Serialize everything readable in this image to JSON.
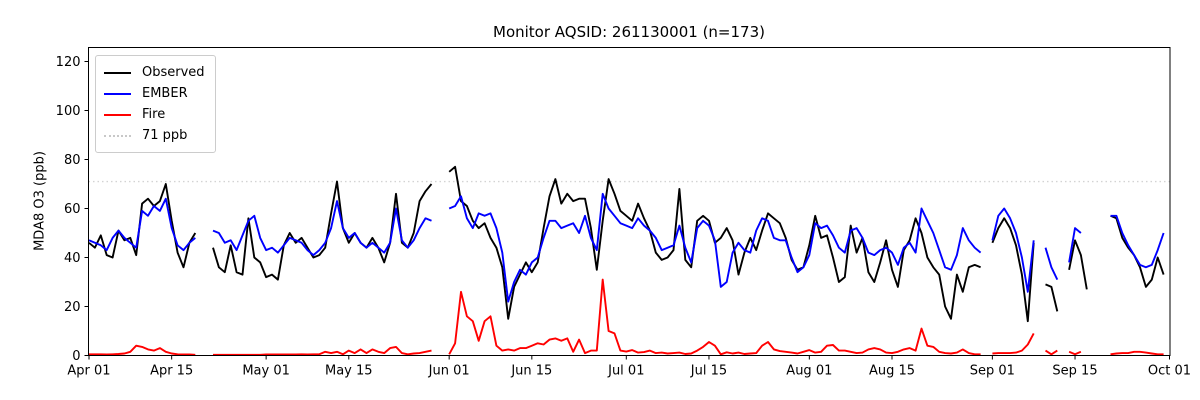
{
  "title": "Monitor AQSID: 261130001 (n=173)",
  "ylabel": "MDA8 O3 (ppb)",
  "legend": {
    "items": [
      {
        "label": "Observed",
        "color": "#000000",
        "style": "solid"
      },
      {
        "label": "EMBER",
        "color": "#0000ff",
        "style": "solid"
      },
      {
        "label": "Fire",
        "color": "#ff0000",
        "style": "solid"
      },
      {
        "label": "71 ppb",
        "color": "#c8c8c8",
        "style": "dotted"
      }
    ]
  },
  "chart_data": {
    "type": "line",
    "title": "Monitor AQSID: 261130001 (n=173)",
    "xlabel": "",
    "ylabel": "MDA8 O3 (ppb)",
    "x_unit": "day index from Apr 01",
    "x_tick_labels": [
      "Apr 01",
      "Apr 15",
      "May 01",
      "May 15",
      "Jun 01",
      "Jun 15",
      "Jul 01",
      "Jul 15",
      "Aug 01",
      "Aug 15",
      "Sep 01",
      "Sep 15",
      "Oct 01"
    ],
    "x_tick_days": [
      0,
      14,
      30,
      44,
      61,
      75,
      91,
      105,
      122,
      136,
      153,
      167,
      183
    ],
    "y_ticks": [
      0,
      20,
      40,
      60,
      80,
      100,
      120
    ],
    "ylim": [
      0,
      126
    ],
    "xlim_days": [
      0,
      183
    ],
    "grid": false,
    "legend_position": "upper left",
    "ref_line": {
      "value": 71,
      "label": "71 ppb",
      "color": "#d3d3d3",
      "style": "dotted"
    },
    "series": [
      {
        "name": "Observed",
        "color": "#000000",
        "values": [
          46,
          44,
          49,
          41,
          40,
          51,
          47,
          48,
          41,
          62,
          64,
          61,
          63,
          70,
          55,
          42,
          36,
          46,
          50,
          null,
          null,
          44,
          36,
          34,
          45,
          34,
          33,
          56,
          40,
          38,
          32,
          33,
          31,
          45,
          50,
          46,
          48,
          44,
          40,
          41,
          44,
          58,
          71,
          52,
          46,
          50,
          46,
          44,
          48,
          44,
          38,
          46,
          66,
          46,
          44,
          50,
          63,
          67,
          70,
          null,
          null,
          75,
          77,
          63,
          61,
          55,
          52,
          54,
          48,
          44,
          36,
          15,
          28,
          33,
          38,
          34,
          38,
          52,
          65,
          72,
          62,
          66,
          63,
          64,
          64,
          52,
          35,
          55,
          72,
          66,
          59,
          57,
          55,
          62,
          56,
          51,
          42,
          39,
          40,
          43,
          68,
          39,
          36,
          55,
          57,
          55,
          46,
          48,
          52,
          47,
          33,
          42,
          48,
          43,
          51,
          58,
          56,
          54,
          48,
          39,
          35,
          36,
          45,
          57,
          48,
          49,
          40,
          30,
          32,
          53,
          42,
          48,
          34,
          30,
          38,
          47,
          35,
          28,
          43,
          47,
          56,
          50,
          40,
          36,
          33,
          20,
          15,
          33,
          26,
          36,
          37,
          36,
          null,
          46,
          52,
          56,
          52,
          45,
          33,
          14,
          46,
          null,
          29,
          28,
          18,
          null,
          35,
          47,
          41,
          27,
          null,
          null,
          null,
          57,
          56,
          48,
          44,
          41,
          36,
          28,
          31,
          40,
          33
        ]
      },
      {
        "name": "EMBER",
        "color": "#0000ff",
        "values": [
          47,
          46,
          45,
          43,
          48,
          51,
          48,
          46,
          44,
          59,
          57,
          61,
          59,
          64,
          52,
          45,
          43,
          46,
          48,
          null,
          null,
          51,
          50,
          46,
          47,
          43,
          49,
          55,
          57,
          48,
          43,
          44,
          42,
          45,
          48,
          47,
          46,
          43,
          41,
          43,
          46,
          52,
          63,
          52,
          48,
          50,
          46,
          44,
          46,
          44,
          42,
          46,
          60,
          47,
          44,
          47,
          52,
          56,
          55,
          null,
          null,
          60,
          61,
          65,
          56,
          52,
          58,
          57,
          58,
          52,
          42,
          22,
          30,
          35,
          33,
          38,
          40,
          48,
          55,
          55,
          52,
          53,
          54,
          50,
          57,
          48,
          43,
          66,
          60,
          57,
          54,
          53,
          52,
          56,
          53,
          51,
          48,
          43,
          44,
          45,
          53,
          44,
          38,
          52,
          55,
          53,
          47,
          28,
          30,
          42,
          46,
          43,
          42,
          51,
          56,
          55,
          48,
          47,
          47,
          40,
          34,
          36,
          41,
          54,
          52,
          53,
          49,
          44,
          42,
          51,
          52,
          48,
          42,
          41,
          43,
          44,
          42,
          37,
          44,
          46,
          42,
          60,
          55,
          50,
          43,
          36,
          35,
          41,
          52,
          47,
          44,
          42,
          null,
          47,
          57,
          60,
          56,
          50,
          40,
          26,
          47,
          null,
          44,
          36,
          31,
          null,
          38,
          52,
          50,
          null,
          null,
          null,
          null,
          57,
          57,
          50,
          45,
          41,
          37,
          36,
          37,
          43,
          50
        ]
      },
      {
        "name": "Fire",
        "color": "#ff0000",
        "values": [
          0.5,
          0.5,
          0.5,
          0.4,
          0.5,
          0.6,
          0.8,
          1.5,
          4,
          3.5,
          2.5,
          2,
          3,
          1.5,
          0.8,
          0.5,
          0.4,
          0.4,
          0.3,
          null,
          null,
          0.3,
          0.3,
          0.3,
          0.3,
          0.3,
          0.3,
          0.3,
          0.3,
          0.3,
          0.4,
          0.4,
          0.4,
          0.4,
          0.4,
          0.4,
          0.5,
          0.4,
          0.5,
          0.5,
          1.5,
          1,
          1.5,
          0.5,
          2,
          1,
          2.5,
          1,
          2.5,
          1.5,
          1,
          3,
          3.5,
          1,
          0.5,
          0.8,
          1,
          1.5,
          2,
          null,
          null,
          0.5,
          5,
          26,
          16,
          14,
          6,
          14,
          16,
          4,
          2,
          2.5,
          2,
          3,
          3,
          4,
          5,
          4.5,
          6.5,
          7,
          6,
          7,
          1.5,
          6.5,
          1,
          2,
          2,
          31,
          10,
          9,
          2,
          1.6,
          2.2,
          1.2,
          1.4,
          2,
          1,
          1.2,
          0.8,
          1,
          1.2,
          0.6,
          0.8,
          2,
          3.5,
          5.5,
          4,
          0.5,
          1.3,
          0.8,
          1.2,
          0.6,
          0.8,
          1,
          4,
          5.5,
          2.5,
          1.8,
          1.5,
          1.2,
          0.8,
          1.5,
          2.2,
          1.2,
          1.5,
          4,
          4.3,
          2,
          2,
          1.5,
          1,
          1.2,
          2.5,
          3,
          2.5,
          1.2,
          1,
          1.5,
          2.5,
          3,
          2,
          11,
          4,
          3.5,
          1.5,
          1,
          0.8,
          1.2,
          2.5,
          1,
          0.5,
          0.5,
          null,
          0.8,
          1,
          1,
          1,
          1.2,
          2,
          4.5,
          9,
          null,
          2,
          0.5,
          2,
          null,
          1.5,
          0.5,
          1.5,
          null,
          null,
          null,
          null,
          0.5,
          0.8,
          1,
          1,
          1.5,
          1.5,
          1.2,
          0.8,
          0.5,
          0.5
        ]
      }
    ]
  }
}
